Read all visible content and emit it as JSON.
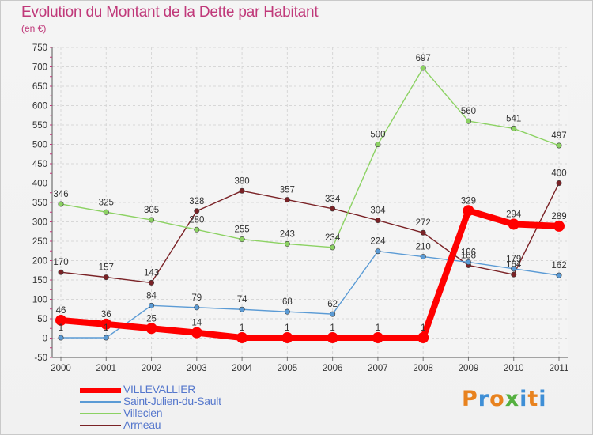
{
  "title": "Evolution du Montant de la Dette par Habitant",
  "subtitle": "(en €)",
  "logo": {
    "text": "Proxiti",
    "colors": [
      "#e8821e",
      "#3f8fd6",
      "#e8821e",
      "#55b040",
      "#3f8fd6",
      "#e8821e",
      "#3f8fd6"
    ]
  },
  "chart_data": {
    "type": "line",
    "x": [
      "2000",
      "2001",
      "2002",
      "2003",
      "2004",
      "2005",
      "2006",
      "2007",
      "2008",
      "2009",
      "2010",
      "2011"
    ],
    "ylim": [
      -50,
      750
    ],
    "yticks": [
      -50,
      0,
      50,
      100,
      150,
      200,
      250,
      300,
      350,
      400,
      450,
      500,
      550,
      600,
      650,
      700,
      750
    ],
    "grid": true,
    "legend_position": "bottom-left",
    "series": [
      {
        "name": "VILLEVALLIER",
        "color": "#ff0000",
        "values": [
          46,
          36,
          25,
          14,
          1,
          1,
          1,
          1,
          1,
          329,
          294,
          289
        ],
        "labels": [
          "46",
          "36",
          "25",
          "14",
          "1",
          "1",
          "1",
          "1",
          "1",
          "329",
          "294",
          "289"
        ]
      },
      {
        "name": "Saint-Julien-du-Sault",
        "color": "#5b9bd5",
        "values": [
          1,
          1,
          84,
          79,
          74,
          68,
          62,
          224,
          210,
          196,
          179,
          162
        ],
        "labels": [
          "1",
          "1",
          "84",
          "79",
          "74",
          "68",
          "62",
          "224",
          "210",
          "196",
          "179",
          "162"
        ]
      },
      {
        "name": "Villecien",
        "color": "#8cd263",
        "values": [
          346,
          325,
          305,
          280,
          255,
          243,
          234,
          500,
          697,
          560,
          541,
          497
        ],
        "labels": [
          "346",
          "325",
          "305",
          "280",
          "255",
          "243",
          "234",
          "500",
          "697",
          "560",
          "541",
          "497"
        ]
      },
      {
        "name": "Armeau",
        "color": "#7a2226",
        "values": [
          170,
          157,
          143,
          328,
          380,
          357,
          334,
          304,
          272,
          188,
          164,
          400
        ],
        "labels": [
          "170",
          "157",
          "143",
          "328",
          "380",
          "357",
          "334",
          "304",
          "272",
          "188",
          "164",
          "400"
        ]
      }
    ]
  }
}
